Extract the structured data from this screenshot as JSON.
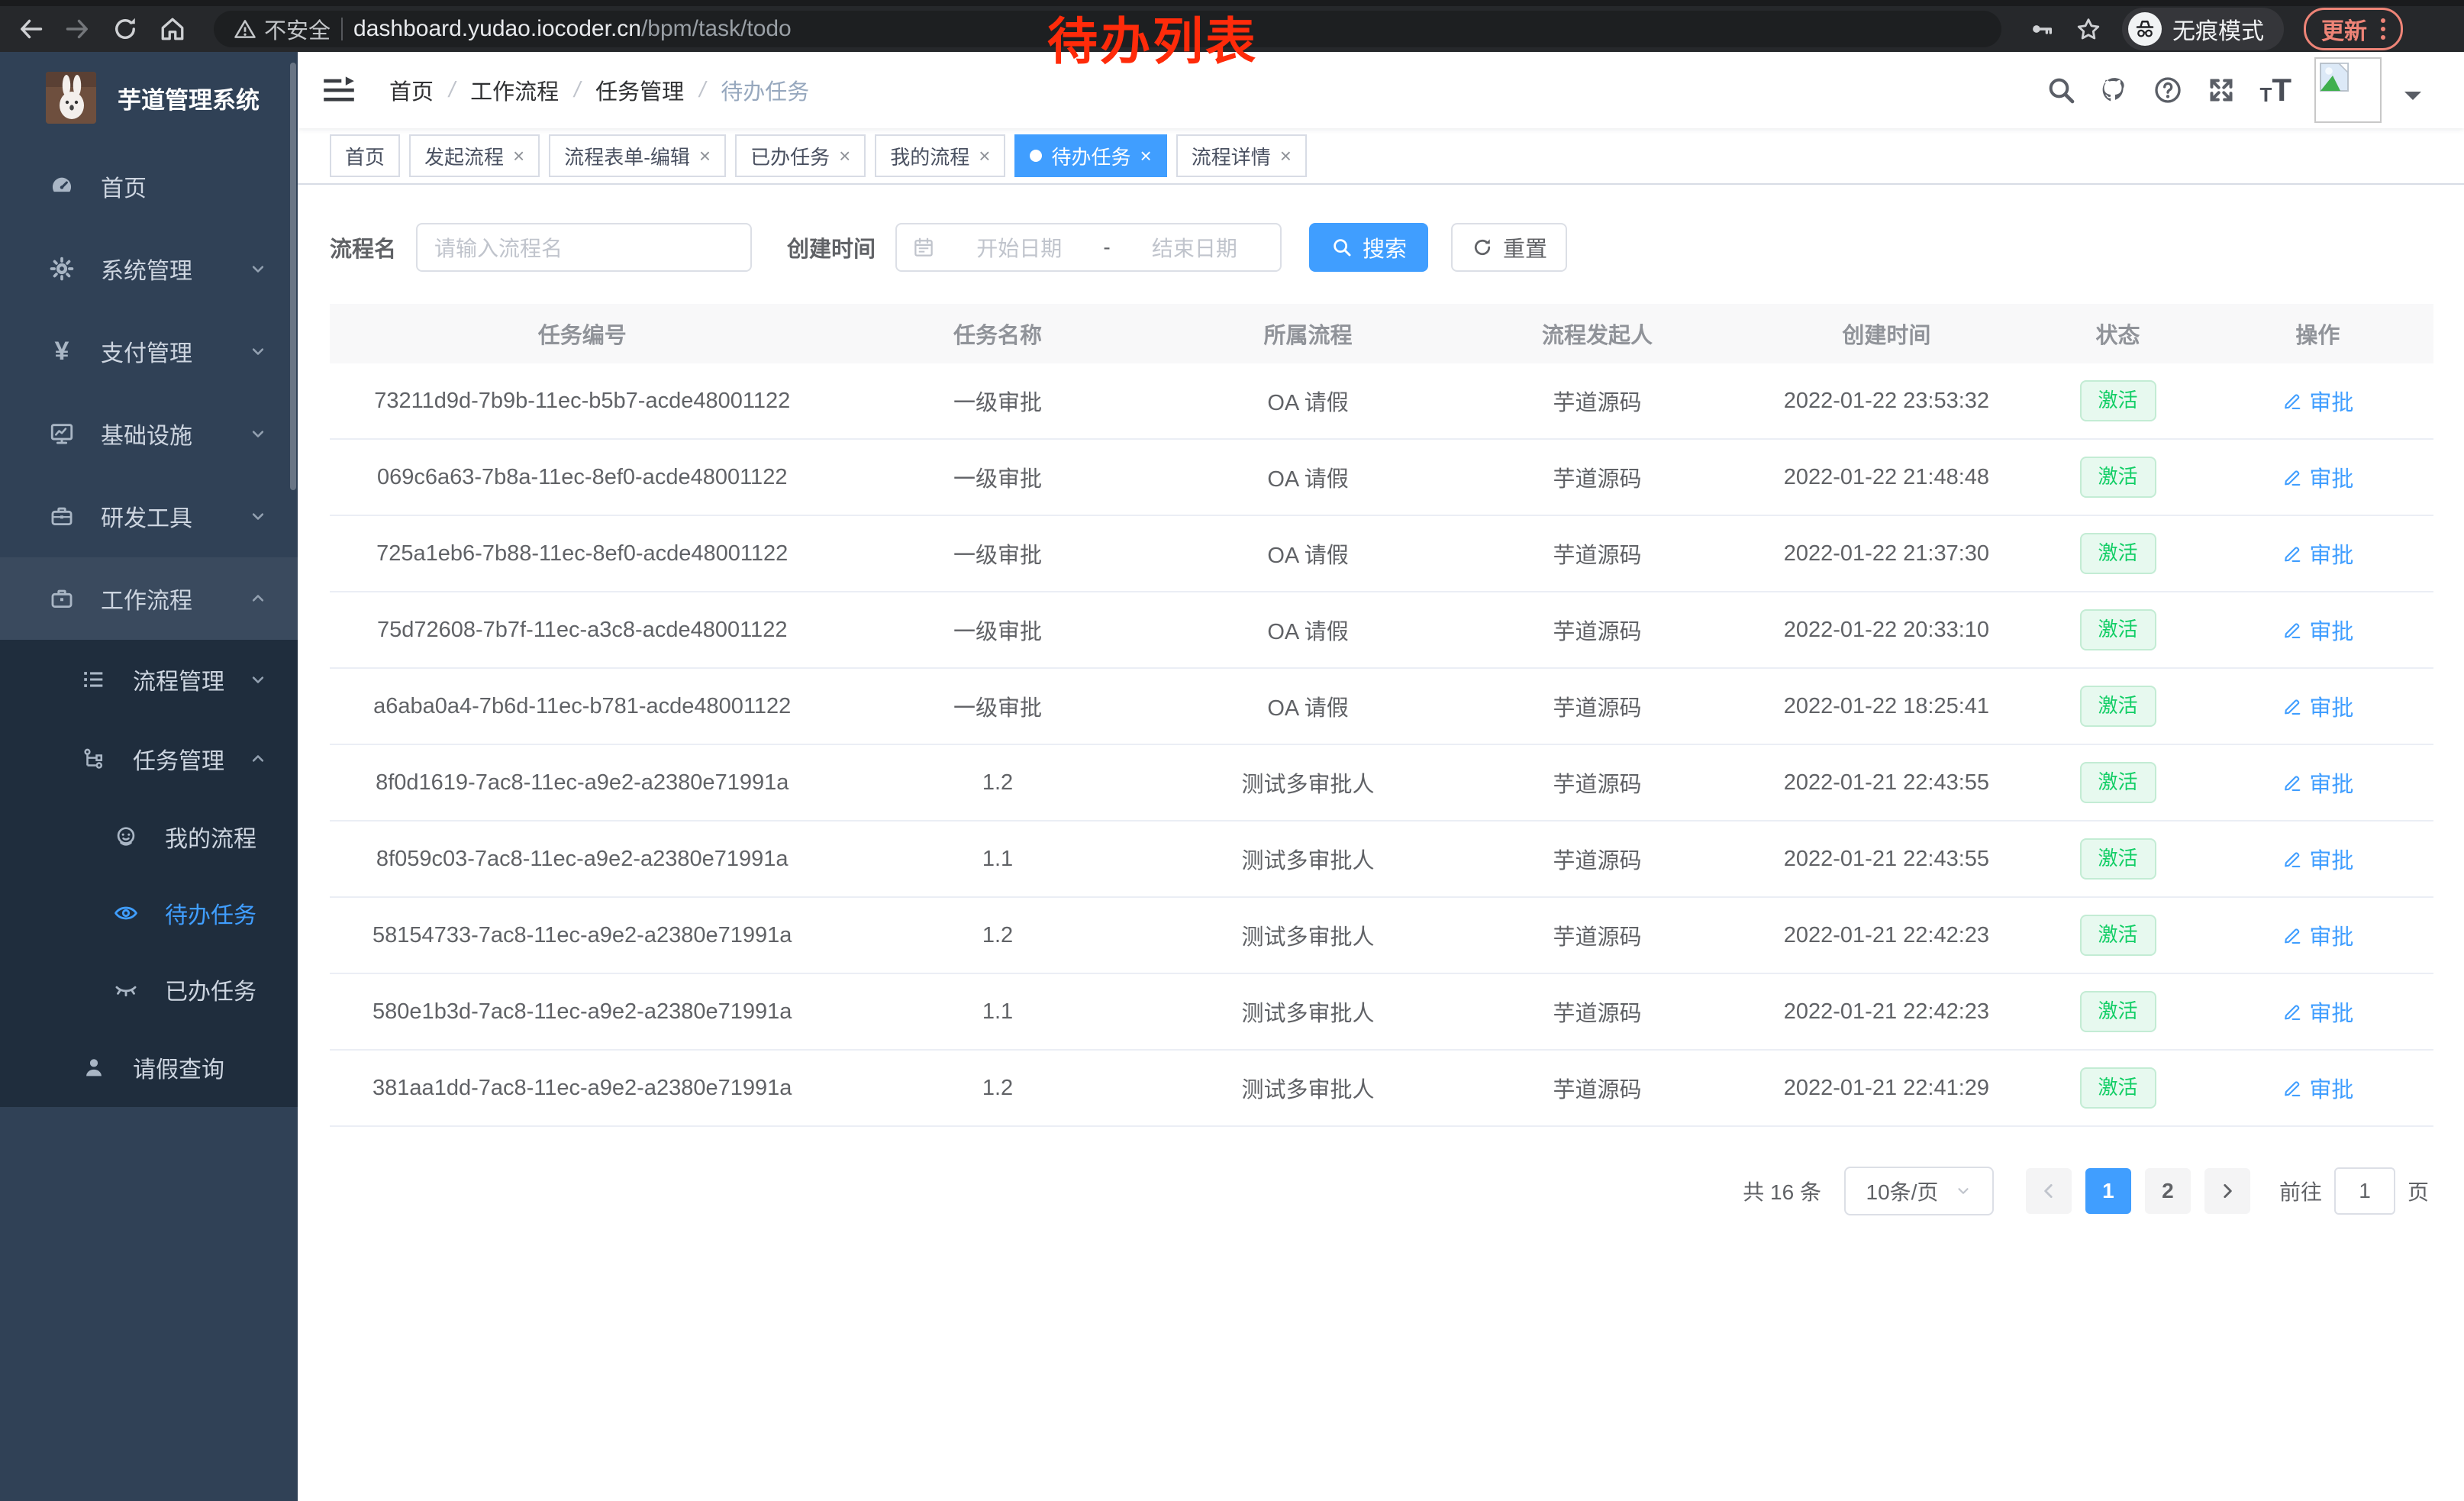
{
  "browser": {
    "security_label": "不安全",
    "url_host": "dashboard.yudao.iocoder.cn",
    "url_path": "/bpm/task/todo",
    "incognito_label": "无痕模式",
    "update_label": "更新"
  },
  "annotation": {
    "text": "待办列表",
    "color": "#ff2b0a"
  },
  "sidebar": {
    "title": "芋道管理系统",
    "items": {
      "home": "首页",
      "system": "系统管理",
      "pay": "支付管理",
      "infra": "基础设施",
      "dev": "研发工具",
      "workflow": "工作流程",
      "process_mgmt": "流程管理",
      "task_mgmt": "任务管理",
      "my_process": "我的流程",
      "todo_task": "待办任务",
      "done_task": "已办任务",
      "leave_query": "请假查询"
    }
  },
  "breadcrumb": [
    "首页",
    "工作流程",
    "任务管理",
    "待办任务"
  ],
  "tabs": [
    {
      "label": "首页",
      "closable": false,
      "active": false
    },
    {
      "label": "发起流程",
      "closable": true,
      "active": false
    },
    {
      "label": "流程表单-编辑",
      "closable": true,
      "active": false
    },
    {
      "label": "已办任务",
      "closable": true,
      "active": false
    },
    {
      "label": "我的流程",
      "closable": true,
      "active": false
    },
    {
      "label": "待办任务",
      "closable": true,
      "active": true
    },
    {
      "label": "流程详情",
      "closable": true,
      "active": false
    }
  ],
  "filters": {
    "name_label": "流程名",
    "name_placeholder": "请输入流程名",
    "time_label": "创建时间",
    "start_placeholder": "开始日期",
    "range_separator": "-",
    "end_placeholder": "结束日期",
    "search_label": "搜索",
    "reset_label": "重置"
  },
  "table": {
    "headers": [
      "任务编号",
      "任务名称",
      "所属流程",
      "流程发起人",
      "创建时间",
      "状态",
      "操作"
    ],
    "status_label": "激活",
    "action_label": "审批",
    "rows": [
      {
        "id": "73211d9d-7b9b-11ec-b5b7-acde48001122",
        "name": "一级审批",
        "process": "OA 请假",
        "initiator": "芋道源码",
        "created": "2022-01-22 23:53:32"
      },
      {
        "id": "069c6a63-7b8a-11ec-8ef0-acde48001122",
        "name": "一级审批",
        "process": "OA 请假",
        "initiator": "芋道源码",
        "created": "2022-01-22 21:48:48"
      },
      {
        "id": "725a1eb6-7b88-11ec-8ef0-acde48001122",
        "name": "一级审批",
        "process": "OA 请假",
        "initiator": "芋道源码",
        "created": "2022-01-22 21:37:30"
      },
      {
        "id": "75d72608-7b7f-11ec-a3c8-acde48001122",
        "name": "一级审批",
        "process": "OA 请假",
        "initiator": "芋道源码",
        "created": "2022-01-22 20:33:10"
      },
      {
        "id": "a6aba0a4-7b6d-11ec-b781-acde48001122",
        "name": "一级审批",
        "process": "OA 请假",
        "initiator": "芋道源码",
        "created": "2022-01-22 18:25:41"
      },
      {
        "id": "8f0d1619-7ac8-11ec-a9e2-a2380e71991a",
        "name": "1.2",
        "process": "测试多审批人",
        "initiator": "芋道源码",
        "created": "2022-01-21 22:43:55"
      },
      {
        "id": "8f059c03-7ac8-11ec-a9e2-a2380e71991a",
        "name": "1.1",
        "process": "测试多审批人",
        "initiator": "芋道源码",
        "created": "2022-01-21 22:43:55"
      },
      {
        "id": "58154733-7ac8-11ec-a9e2-a2380e71991a",
        "name": "1.2",
        "process": "测试多审批人",
        "initiator": "芋道源码",
        "created": "2022-01-21 22:42:23"
      },
      {
        "id": "580e1b3d-7ac8-11ec-a9e2-a2380e71991a",
        "name": "1.1",
        "process": "测试多审批人",
        "initiator": "芋道源码",
        "created": "2022-01-21 22:42:23"
      },
      {
        "id": "381aa1dd-7ac8-11ec-a9e2-a2380e71991a",
        "name": "1.2",
        "process": "测试多审批人",
        "initiator": "芋道源码",
        "created": "2022-01-21 22:41:29"
      }
    ]
  },
  "pagination": {
    "total": "共 16 条",
    "page_size": "10条/页",
    "pages": [
      "1",
      "2"
    ],
    "active_page": "1",
    "goto_label": "前往",
    "goto_value": "1",
    "page_unit": "页"
  },
  "colors": {
    "accent": "#409eff",
    "success": "#13ce66",
    "sidebar": "#304156",
    "submenu": "#1f2d3d"
  }
}
